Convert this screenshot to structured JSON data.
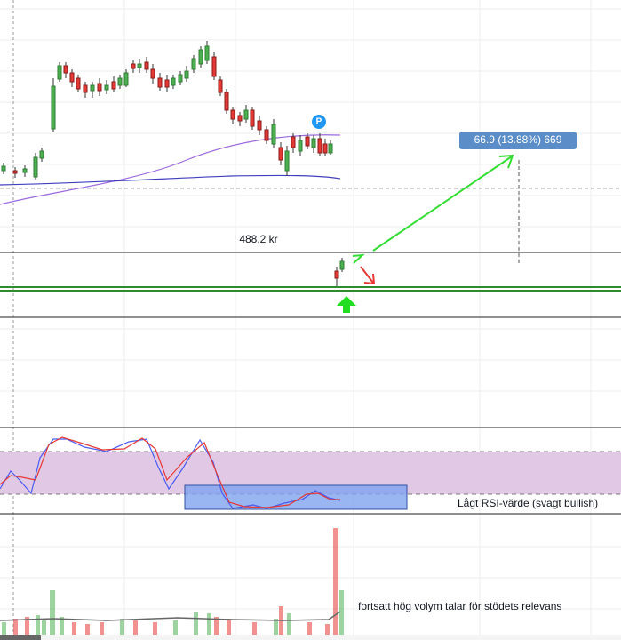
{
  "annotations": {
    "price_label": "488,2 kr",
    "target_label": "66.9 (13.88%) 669",
    "p_marker": "P",
    "rsi_note": "Lågt RSI-värde (svagt bullish)",
    "volume_note": "fortsatt hög volym talar för stödets relevans"
  }
}
